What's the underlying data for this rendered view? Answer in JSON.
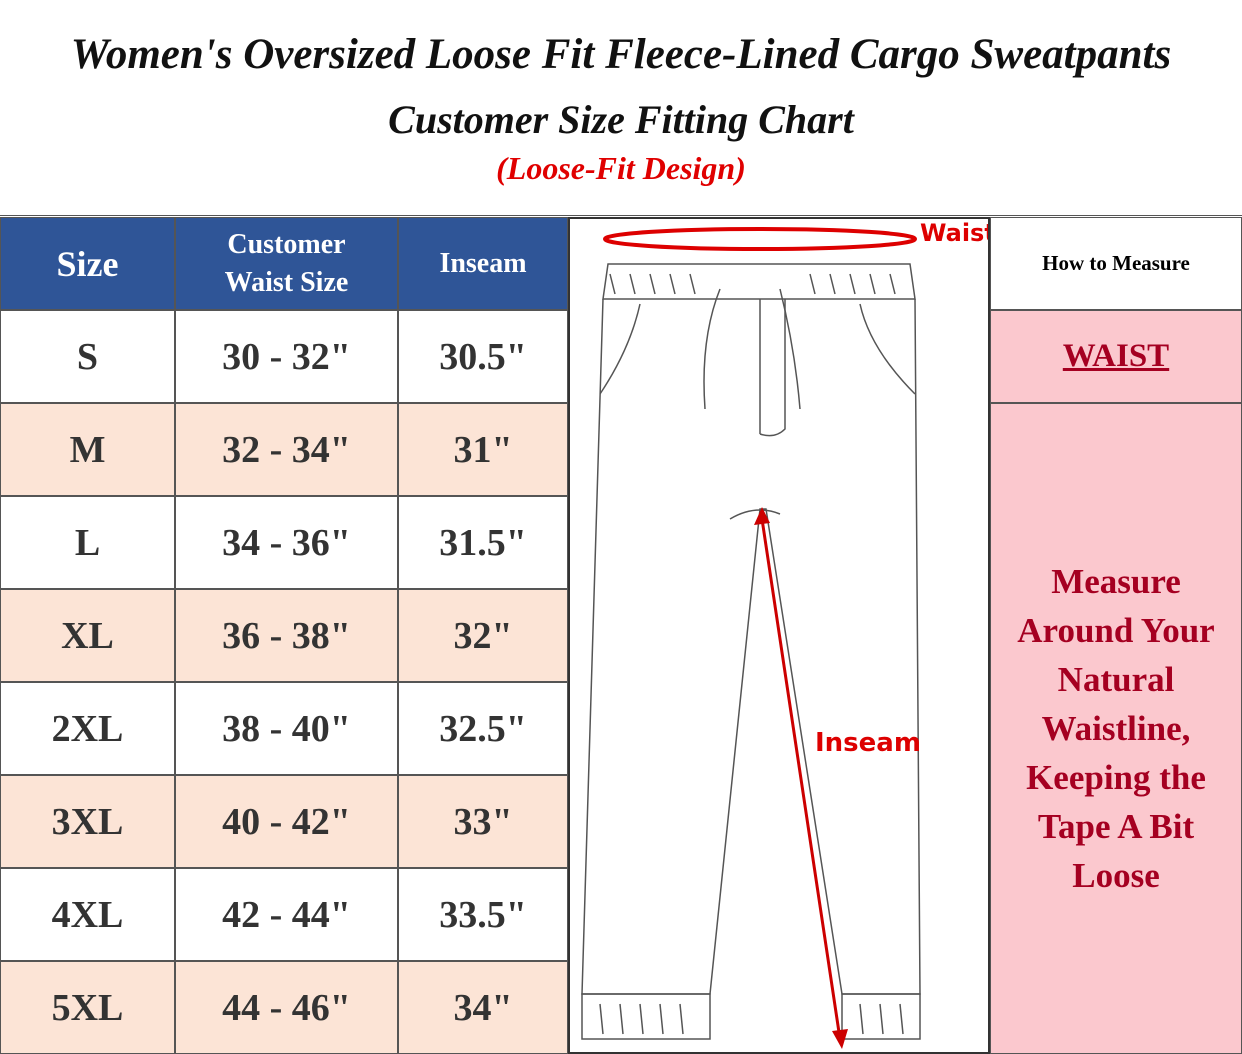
{
  "header": {
    "title": "Women's Oversized Loose Fit Fleece-Lined Cargo Sweatpants",
    "subtitle": "Customer Size Fitting Chart",
    "note": "(Loose-Fit Design)"
  },
  "table": {
    "columns": [
      "Size",
      "Customer Waist Size",
      "Inseam"
    ],
    "rows": [
      [
        "S",
        "30 - 32\"",
        "30.5\""
      ],
      [
        "M",
        "32 - 34\"",
        "31\""
      ],
      [
        "L",
        "34 - 36\"",
        "31.5\""
      ],
      [
        "XL",
        "36 - 38\"",
        "32\""
      ],
      [
        "2XL",
        "38 - 40\"",
        "32.5\""
      ],
      [
        "3XL",
        "40 - 42\"",
        "33\""
      ],
      [
        "4XL",
        "42 - 44\"",
        "33.5\""
      ],
      [
        "5XL",
        "44 - 46\"",
        "34\""
      ]
    ]
  },
  "diagram": {
    "waist_label": "Waist",
    "inseam_label": "Inseam"
  },
  "measure": {
    "header": "How to Measure",
    "label": "WAIST",
    "text": "Measure Around Your Natural Waistline, Keeping the Tape A Bit Loose"
  }
}
